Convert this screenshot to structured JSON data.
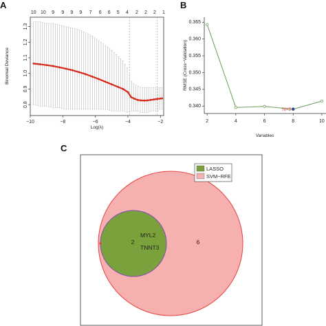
{
  "panels": {
    "a": "A",
    "b": "B",
    "c": "C"
  },
  "chart_data": [
    {
      "type": "line",
      "panel": "A",
      "xlabel": "Log(λ)",
      "ylabel": "Binomial Deviance",
      "xlim": [
        -10,
        -1.8
      ],
      "ylim": [
        0.73,
        1.36
      ],
      "xticks": [
        "−10",
        "−8",
        "−6",
        "−4",
        "−2"
      ],
      "yticks": [
        "0.8",
        "0.9",
        "1.0",
        "1.1",
        "1.2",
        "1.3"
      ],
      "top_axis_labels": [
        "10",
        "10",
        "9",
        "9",
        "9",
        "9",
        "7",
        "6",
        "6",
        "5",
        "4",
        "2",
        "2",
        "2",
        "1"
      ],
      "top_axis_x": [
        -9.8,
        -9.2,
        -8.6,
        -8.0,
        -7.45,
        -6.9,
        -6.3,
        -5.7,
        -5.15,
        -4.6,
        -4.05,
        -3.45,
        -2.9,
        -2.35,
        -1.8
      ],
      "reference_lines_x": [
        -3.9,
        -2.2
      ],
      "colors": {
        "mean": "#d62718",
        "error_bar": "#aaaaaa"
      },
      "series": [
        {
          "x": [
            -9.8,
            -9.4,
            -9.0,
            -8.6,
            -8.2,
            -7.8,
            -7.4,
            -7.0,
            -6.6,
            -6.2,
            -5.8,
            -5.4,
            -5.0,
            -4.6,
            -4.3,
            -4.0,
            -3.8,
            -3.6,
            -3.4,
            -3.2,
            -3.0,
            -2.8,
            -2.6,
            -2.4,
            -2.2,
            -2.0,
            -1.9
          ],
          "y": [
            1.063,
            1.058,
            1.053,
            1.047,
            1.039,
            1.03,
            1.02,
            1.008,
            0.995,
            0.98,
            0.964,
            0.947,
            0.93,
            0.913,
            0.9,
            0.88,
            0.848,
            0.838,
            0.83,
            0.827,
            0.826,
            0.827,
            0.83,
            0.833,
            0.836,
            0.839,
            0.84
          ],
          "upper": [
            1.33,
            1.33,
            1.32,
            1.32,
            1.31,
            1.3,
            1.29,
            1.28,
            1.26,
            1.24,
            1.21,
            1.18,
            1.15,
            1.11,
            1.08,
            1.03,
            0.95,
            0.93,
            0.92,
            0.91,
            0.91,
            0.91,
            0.91,
            0.91,
            0.91,
            0.91,
            0.91
          ],
          "lower": [
            0.8,
            0.79,
            0.79,
            0.78,
            0.78,
            0.77,
            0.77,
            0.77,
            0.77,
            0.77,
            0.77,
            0.77,
            0.76,
            0.76,
            0.76,
            0.75,
            0.76,
            0.76,
            0.76,
            0.75,
            0.75,
            0.75,
            0.76,
            0.76,
            0.76,
            0.77,
            0.77
          ]
        }
      ]
    },
    {
      "type": "line",
      "panel": "B",
      "xlabel": "Variables",
      "ylabel": "RMSE (Cross−Validation)",
      "xlim": [
        1.8,
        10.1
      ],
      "ylim": [
        0.3378,
        0.3665
      ],
      "xticks": [
        "2",
        "4",
        "6",
        "8",
        "10"
      ],
      "yticks": [
        "0.340",
        "0.345",
        "0.350",
        "0.355",
        "0.360",
        "0.365"
      ],
      "annotation": "N=8",
      "colors": {
        "line": "#6b9c5c",
        "best": "#2f4a8a",
        "annotation": "#d63a3a"
      },
      "series": [
        {
          "x": [
            2,
            4,
            6,
            8,
            10
          ],
          "y": [
            0.3643,
            0.3396,
            0.3399,
            0.3391,
            0.3415
          ]
        }
      ]
    },
    {
      "type": "venn",
      "panel": "C",
      "legend": [
        "LASSO",
        "SVM−RFE"
      ],
      "colors": {
        "lasso": "#7aa13b",
        "svm": "#f7b0b0",
        "svm_border": "#e84040",
        "lasso_border": "#7a4fb5"
      },
      "regions": {
        "only_lasso": "",
        "intersection": "2",
        "only_svm": "6"
      },
      "shared_genes": [
        "MYL2",
        "TNNT3"
      ]
    }
  ]
}
